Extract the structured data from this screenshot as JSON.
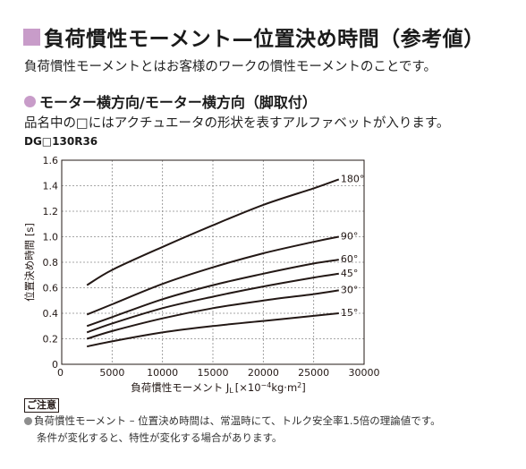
{
  "header": {
    "title": "負荷慣性モーメント—位置決め時間（参考値）",
    "intro": "負荷慣性モーメントとはお客様のワークの慣性モーメントのことです。"
  },
  "section": {
    "title": "モーター横方向/モーター横方向（脚取付）",
    "description": "品名中の□にはアクチュエータの形状を表すアルファベットが入ります。",
    "model": "DG□130R36"
  },
  "chart_data": {
    "type": "line",
    "xlabel": "負荷慣性モーメント J",
    "xlabel_sub": "L",
    "xlabel_unit_pre": "[×10",
    "xlabel_unit_exp": "−4",
    "xlabel_unit_post": "kg·m",
    "xlabel_unit_exp2": "2",
    "xlabel_unit_end": "]",
    "ylabel": "位置決め時間 [s]",
    "xlim": [
      0,
      30000
    ],
    "ylim": [
      0,
      1.6
    ],
    "xticks": [
      0,
      5000,
      10000,
      15000,
      20000,
      25000,
      30000
    ],
    "xtick_labels": [
      "0",
      "5000",
      "10000",
      "15000",
      "20000",
      "25000",
      "30000"
    ],
    "yticks": [
      0,
      0.2,
      0.4,
      0.6,
      0.8,
      1.0,
      1.2,
      1.4,
      1.6
    ],
    "ytick_labels": [
      "0",
      "0.2",
      "0.4",
      "0.6",
      "0.8",
      "1.0",
      "1.2",
      "1.4",
      "1.6"
    ],
    "grid": true,
    "series": [
      {
        "name": "180°",
        "x": [
          2500,
          5000,
          10000,
          15000,
          20000,
          25000,
          27500
        ],
        "y": [
          0.62,
          0.74,
          0.92,
          1.09,
          1.25,
          1.38,
          1.45
        ]
      },
      {
        "name": "90°",
        "x": [
          2500,
          5000,
          10000,
          15000,
          20000,
          25000,
          27500
        ],
        "y": [
          0.39,
          0.47,
          0.63,
          0.76,
          0.87,
          0.96,
          1.0
        ]
      },
      {
        "name": "60°",
        "x": [
          2500,
          5000,
          10000,
          15000,
          20000,
          25000,
          27500
        ],
        "y": [
          0.3,
          0.37,
          0.51,
          0.62,
          0.71,
          0.79,
          0.82
        ]
      },
      {
        "name": "45°",
        "x": [
          2500,
          5000,
          10000,
          15000,
          20000,
          25000,
          27500
        ],
        "y": [
          0.25,
          0.32,
          0.44,
          0.53,
          0.61,
          0.68,
          0.71
        ]
      },
      {
        "name": "30°",
        "x": [
          2500,
          5000,
          10000,
          15000,
          20000,
          25000,
          27500
        ],
        "y": [
          0.2,
          0.26,
          0.36,
          0.44,
          0.5,
          0.55,
          0.58
        ]
      },
      {
        "name": "15°",
        "x": [
          2500,
          5000,
          10000,
          15000,
          20000,
          25000,
          27500
        ],
        "y": [
          0.14,
          0.18,
          0.25,
          0.3,
          0.34,
          0.38,
          0.4
        ]
      }
    ]
  },
  "note": {
    "label": "ご注意",
    "line1": "負荷慣性モーメント – 位置決め時間は、常温時にて、トルク安全率1.5倍の理論値です。",
    "line2": "条件が変化すると、特性が変化する場合があります。"
  }
}
